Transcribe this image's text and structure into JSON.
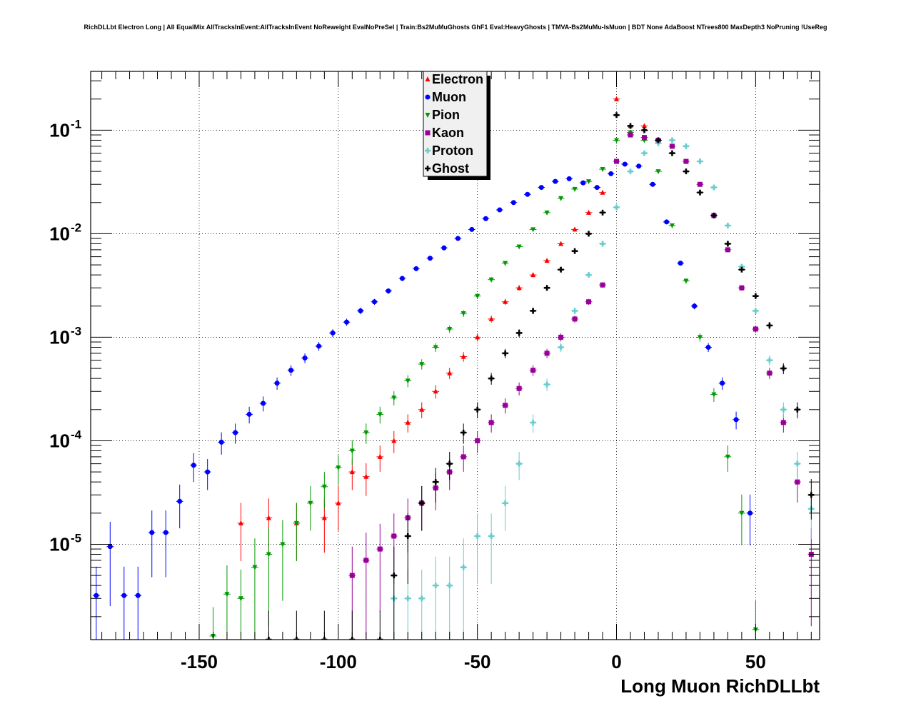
{
  "title": "RichDLLbt Electron Long | All EqualMix AllTracksInEvent:AllTracksInEvent NoReweight EvalNoPreSel | Train:Bs2MuMuGhosts GhF1 Eval:HeavyGhosts | TMVA-Bs2MuMu-IsMuon | BDT None AdaBoost NTrees800 MaxDepth3 NoPruning !UseReg",
  "chart_data": {
    "type": "scatter",
    "xlabel": "Long Muon RichDLLbt",
    "ylabel": "",
    "xlim": [
      -189,
      73
    ],
    "ylim": [
      1.2e-06,
      0.37
    ],
    "y_scale": "log",
    "grid": true,
    "legend_position": "top-center",
    "x_ticks": [
      -150,
      -100,
      -50,
      0,
      50
    ],
    "x_tick_labels": [
      "-150",
      "-100",
      "-50",
      "0",
      "50"
    ],
    "y_ticks": [
      1e-05,
      0.0001,
      0.001,
      0.01,
      0.1
    ],
    "y_tick_labels": [
      {
        "base": "10",
        "exp": "-5"
      },
      {
        "base": "10",
        "exp": "-4"
      },
      {
        "base": "10",
        "exp": "-3"
      },
      {
        "base": "10",
        "exp": "-2"
      },
      {
        "base": "10",
        "exp": "-1"
      }
    ],
    "series": [
      {
        "name": "Electron",
        "color": "#ff0000",
        "marker": "triangle-up",
        "x": [
          -135,
          -125,
          -115,
          -105,
          -100,
          -95,
          -90,
          -85,
          -80,
          -75,
          -70,
          -65,
          -60,
          -55,
          -50,
          -45,
          -40,
          -35,
          -30,
          -25,
          -20,
          -15,
          -10,
          -5,
          0,
          5,
          10
        ],
        "y": [
          1.6e-05,
          1.8e-05,
          1.6e-05,
          1.8e-05,
          2.5e-05,
          5e-05,
          4.5e-05,
          7e-05,
          0.0001,
          0.00015,
          0.0002,
          0.0003,
          0.00045,
          0.00065,
          0.001,
          0.0015,
          0.0022,
          0.003,
          0.004,
          0.0055,
          0.008,
          0.011,
          0.016,
          0.025,
          0.2,
          0.11,
          0.11
        ]
      },
      {
        "name": "Muon",
        "color": "#0000ff",
        "marker": "circle",
        "x": [
          -187,
          -182,
          -177,
          -172,
          -167,
          -162,
          -157,
          -152,
          -147,
          -142,
          -137,
          -132,
          -127,
          -122,
          -117,
          -112,
          -107,
          -102,
          -97,
          -92,
          -87,
          -82,
          -77,
          -72,
          -67,
          -62,
          -57,
          -52,
          -47,
          -42,
          -37,
          -32,
          -27,
          -22,
          -17,
          -12,
          -7,
          -2,
          3,
          8,
          13,
          18,
          23,
          28,
          33,
          38,
          43,
          48
        ],
        "y": [
          3.2e-06,
          9.5e-06,
          3.2e-06,
          3.2e-06,
          1.3e-05,
          1.3e-05,
          2.6e-05,
          5.8e-05,
          5e-05,
          9.7e-05,
          0.00012,
          0.00018,
          0.00023,
          0.00036,
          0.00048,
          0.00063,
          0.00082,
          0.0011,
          0.0014,
          0.0018,
          0.0022,
          0.0028,
          0.0037,
          0.0046,
          0.0058,
          0.0073,
          0.009,
          0.011,
          0.014,
          0.017,
          0.02,
          0.024,
          0.028,
          0.032,
          0.034,
          0.031,
          0.028,
          0.038,
          0.047,
          0.045,
          0.03,
          0.013,
          0.0052,
          0.002,
          0.0008,
          0.00036,
          0.00016,
          2e-05
        ]
      },
      {
        "name": "Pion",
        "color": "#009900",
        "marker": "triangle-down",
        "x": [
          -145,
          -140,
          -135,
          -130,
          -125,
          -120,
          -115,
          -110,
          -105,
          -100,
          -95,
          -90,
          -85,
          -80,
          -75,
          -70,
          -65,
          -60,
          -55,
          -50,
          -45,
          -40,
          -35,
          -30,
          -25,
          -20,
          -15,
          -10,
          -5,
          0,
          5,
          10,
          15,
          20,
          25,
          30,
          35,
          40,
          45,
          50
        ],
        "y": [
          1.3e-06,
          3.3e-06,
          3e-06,
          6e-06,
          8e-06,
          1e-05,
          1.6e-05,
          2.5e-05,
          3.6e-05,
          5.5e-05,
          8e-05,
          0.00012,
          0.00018,
          0.00026,
          0.00038,
          0.00055,
          0.0008,
          0.0012,
          0.0017,
          0.0025,
          0.0036,
          0.0052,
          0.0075,
          0.011,
          0.016,
          0.022,
          0.027,
          0.032,
          0.042,
          0.08,
          0.095,
          0.08,
          0.04,
          0.012,
          0.0035,
          0.001,
          0.00028,
          7e-05,
          2e-05,
          1.5e-06
        ]
      },
      {
        "name": "Kaon",
        "color": "#990099",
        "marker": "square",
        "x": [
          -95,
          -90,
          -85,
          -80,
          -75,
          -70,
          -65,
          -60,
          -55,
          -50,
          -45,
          -40,
          -35,
          -30,
          -25,
          -20,
          -15,
          -10,
          -5,
          0,
          5,
          10,
          15,
          20,
          25,
          30,
          35,
          40,
          45,
          50,
          55,
          60,
          65,
          70
        ],
        "y": [
          5e-06,
          7e-06,
          9e-06,
          1.2e-05,
          1.8e-05,
          2.5e-05,
          3.5e-05,
          5e-05,
          7e-05,
          0.0001,
          0.00015,
          0.00022,
          0.00032,
          0.00048,
          0.0007,
          0.001,
          0.0015,
          0.0022,
          0.0032,
          0.05,
          0.09,
          0.085,
          0.08,
          0.07,
          0.05,
          0.03,
          0.015,
          0.007,
          0.003,
          0.0012,
          0.00045,
          0.00015,
          4e-05,
          8e-06
        ]
      },
      {
        "name": "Proton",
        "color": "#66cccc",
        "marker": "cross",
        "x": [
          -80,
          -75,
          -70,
          -65,
          -60,
          -55,
          -50,
          -45,
          -40,
          -35,
          -30,
          -25,
          -20,
          -15,
          -10,
          -5,
          0,
          5,
          10,
          15,
          20,
          25,
          30,
          35,
          40,
          45,
          50,
          55,
          60,
          65,
          70
        ],
        "y": [
          3e-06,
          3e-06,
          3e-06,
          4e-06,
          4e-06,
          6e-06,
          1.2e-05,
          1.2e-05,
          2.5e-05,
          6e-05,
          0.00015,
          0.00035,
          0.0008,
          0.0018,
          0.004,
          0.008,
          0.018,
          0.04,
          0.06,
          0.075,
          0.08,
          0.07,
          0.05,
          0.028,
          0.012,
          0.0048,
          0.0018,
          0.0006,
          0.0002,
          6e-05,
          2.2e-05
        ]
      },
      {
        "name": "Ghost",
        "color": "#000000",
        "marker": "cross",
        "x": [
          -125,
          -115,
          -105,
          -95,
          -85,
          -80,
          -75,
          -70,
          -65,
          -60,
          -55,
          -50,
          -45,
          -40,
          -35,
          -30,
          -25,
          -20,
          -15,
          -10,
          -5,
          0,
          5,
          10,
          15,
          20,
          25,
          30,
          35,
          40,
          45,
          50,
          55,
          60,
          65,
          70
        ],
        "y": [
          1.2e-06,
          1.2e-06,
          1.2e-06,
          1.2e-06,
          1.2e-06,
          5e-06,
          1.2e-05,
          2.5e-05,
          4e-05,
          6e-05,
          0.00012,
          0.0002,
          0.0004,
          0.0007,
          0.0011,
          0.0018,
          0.003,
          0.0045,
          0.0068,
          0.01,
          0.016,
          0.14,
          0.11,
          0.1,
          0.08,
          0.06,
          0.04,
          0.025,
          0.015,
          0.008,
          0.0045,
          0.0025,
          0.0013,
          0.0005,
          0.0002,
          3e-05
        ]
      }
    ]
  }
}
